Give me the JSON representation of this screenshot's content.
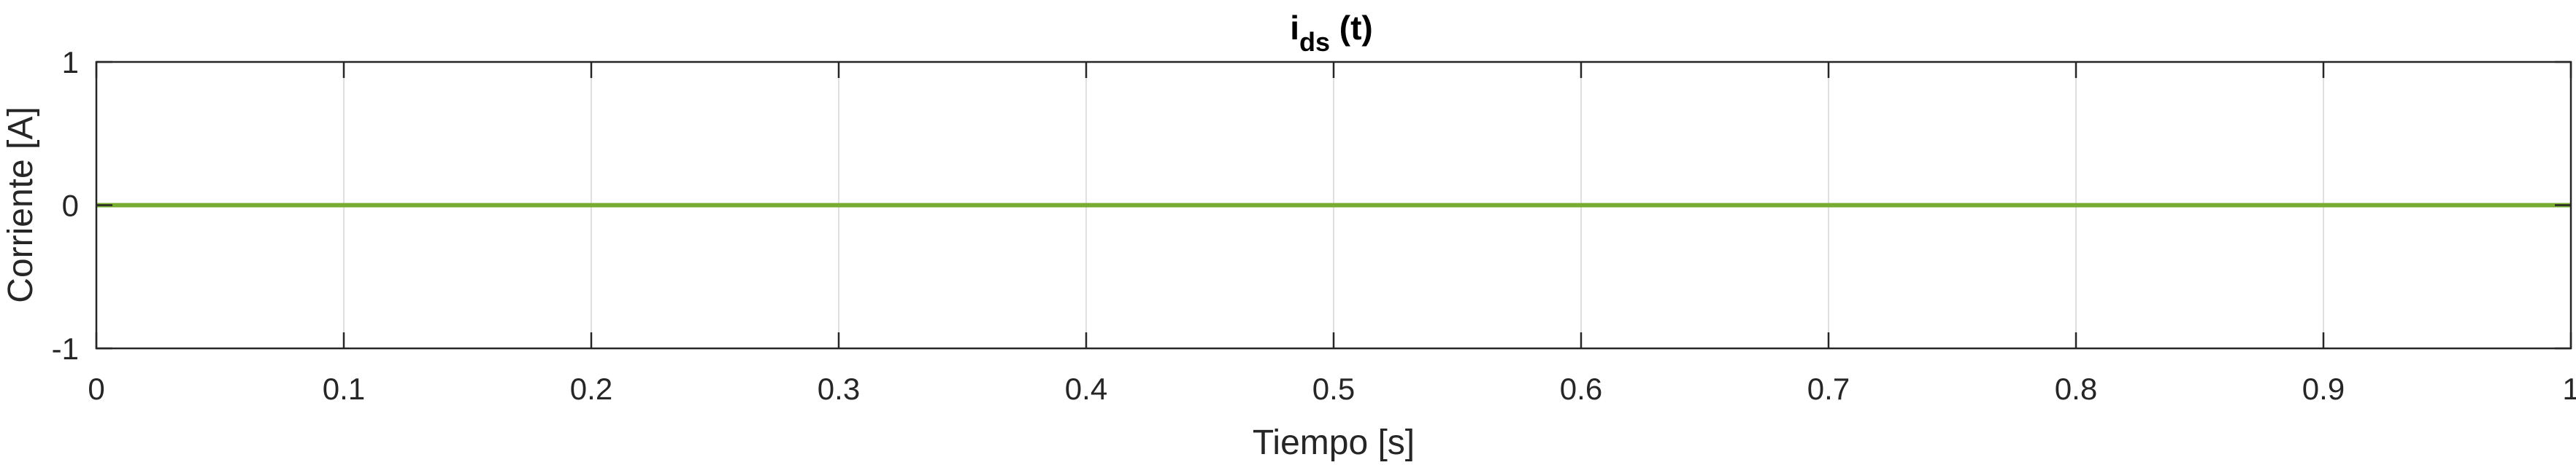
{
  "chart_data": {
    "type": "line",
    "title": {
      "main": "i",
      "subscript": "ds",
      "suffix": " (t)"
    },
    "xlabel": "Tiempo [s]",
    "ylabel": "Corriente [A]",
    "xlim": [
      0,
      1
    ],
    "ylim": [
      -1,
      1
    ],
    "xticks": [
      0,
      0.1,
      0.2,
      0.3,
      0.4,
      0.5,
      0.6,
      0.7,
      0.8,
      0.9,
      1
    ],
    "xtick_labels": [
      "0",
      "0.1",
      "0.2",
      "0.3",
      "0.4",
      "0.5",
      "0.6",
      "0.7",
      "0.8",
      "0.9",
      "1"
    ],
    "yticks": [
      -1,
      0,
      1
    ],
    "ytick_labels": [
      "-1",
      "0",
      "1"
    ],
    "grid": "x-only",
    "series": [
      {
        "x": [
          0,
          1
        ],
        "y": [
          0,
          0
        ],
        "color": "#77ac30"
      }
    ],
    "colors": {
      "axes": "#262626",
      "grid": "#dfdfdf",
      "line": "#77ac30"
    }
  }
}
